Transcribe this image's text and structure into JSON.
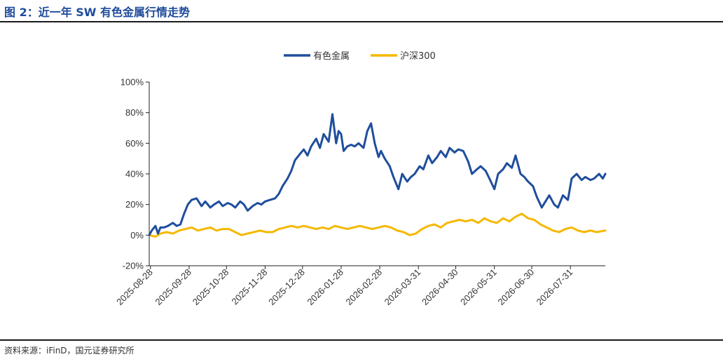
{
  "figure": {
    "title": "图 2：近一年 SW 有色金属行情走势",
    "source": "资料来源：iFinD，国元证券研究所"
  },
  "chart_data": {
    "type": "line",
    "title": "",
    "xlabel": "",
    "ylabel": "",
    "ylim": [
      -20,
      100
    ],
    "yticks": [
      "100%",
      "80%",
      "60%",
      "40%",
      "20%",
      "0%",
      "-20%"
    ],
    "yvalues": [
      100,
      80,
      60,
      40,
      20,
      0,
      -20
    ],
    "xrange": [
      "2025-08-27",
      "2026-08-28"
    ],
    "xticks": [
      "2025-08-28",
      "2025-09-28",
      "2025-10-28",
      "2025-11-28",
      "2025-12-28",
      "2026-01-28",
      "2026-02-28",
      "2026-03-31",
      "2026-04-30",
      "2026-05-31",
      "2026-06-30",
      "2026-07-31"
    ],
    "grid": false,
    "legend_position": "top-center",
    "series": [
      {
        "name": "有色金属",
        "color": "#1f4e9c",
        "x": [
          "2025-08-27",
          "2025-08-29",
          "2025-09-01",
          "2025-09-03",
          "2025-09-05",
          "2025-09-08",
          "2025-09-11",
          "2025-09-15",
          "2025-09-18",
          "2025-09-21",
          "2025-09-24",
          "2025-09-27",
          "2025-09-30",
          "2025-10-04",
          "2025-10-08",
          "2025-10-11",
          "2025-10-15",
          "2025-10-18",
          "2025-10-22",
          "2025-10-25",
          "2025-10-29",
          "2025-11-01",
          "2025-11-04",
          "2025-11-08",
          "2025-11-11",
          "2025-11-14",
          "2025-11-18",
          "2025-11-22",
          "2025-11-25",
          "2025-11-28",
          "2025-12-02",
          "2025-12-06",
          "2025-12-09",
          "2025-12-12",
          "2025-12-16",
          "2025-12-19",
          "2025-12-22",
          "2025-12-26",
          "2025-12-29",
          "2026-01-01",
          "2026-01-04",
          "2026-01-08",
          "2026-01-11",
          "2026-01-14",
          "2026-01-18",
          "2026-01-21",
          "2026-01-24",
          "2026-01-26",
          "2026-01-28",
          "2026-01-30",
          "2026-02-02",
          "2026-02-05",
          "2026-02-08",
          "2026-02-11",
          "2026-02-15",
          "2026-02-18",
          "2026-02-21",
          "2026-02-24",
          "2026-02-27",
          "2026-03-01",
          "2026-03-04",
          "2026-03-08",
          "2026-03-11",
          "2026-03-15",
          "2026-03-18",
          "2026-03-22",
          "2026-03-25",
          "2026-03-28",
          "2026-04-01",
          "2026-04-04",
          "2026-04-08",
          "2026-04-11",
          "2026-04-15",
          "2026-04-18",
          "2026-04-22",
          "2026-04-25",
          "2026-04-29",
          "2026-05-02",
          "2026-05-06",
          "2026-05-10",
          "2026-05-13",
          "2026-05-17",
          "2026-05-20",
          "2026-05-24",
          "2026-05-27",
          "2026-05-31",
          "2026-06-03",
          "2026-06-07",
          "2026-06-10",
          "2026-06-14",
          "2026-06-17",
          "2026-06-21",
          "2026-06-24",
          "2026-06-27",
          "2026-07-01",
          "2026-07-04",
          "2026-07-08",
          "2026-07-11",
          "2026-07-14",
          "2026-07-18",
          "2026-07-21",
          "2026-07-25",
          "2026-07-29",
          "2026-08-01",
          "2026-08-05",
          "2026-08-09",
          "2026-08-12",
          "2026-08-16",
          "2026-08-19",
          "2026-08-23",
          "2026-08-26",
          "2026-08-28"
        ],
        "values": [
          0,
          3,
          6,
          1,
          5,
          5,
          6,
          8,
          6,
          7,
          14,
          20,
          23,
          24,
          19,
          22,
          18,
          20,
          22,
          19,
          21,
          20,
          18,
          22,
          20,
          16,
          19,
          21,
          20,
          22,
          23,
          24,
          27,
          32,
          37,
          42,
          49,
          53,
          56,
          52,
          58,
          63,
          57,
          66,
          61,
          79,
          60,
          68,
          66,
          55,
          58,
          59,
          58,
          60,
          57,
          68,
          73,
          60,
          51,
          55,
          50,
          45,
          38,
          30,
          40,
          35,
          38,
          40,
          45,
          43,
          52,
          47,
          51,
          55,
          51,
          57,
          54,
          56,
          55,
          48,
          40,
          43,
          45,
          42,
          37,
          30,
          40,
          43,
          47,
          44,
          52,
          40,
          38,
          35,
          32,
          25,
          18,
          22,
          26,
          20,
          18,
          26,
          23,
          37,
          40,
          36,
          38,
          36,
          37,
          40,
          37,
          40
        ]
      },
      {
        "name": "沪深300",
        "color": "#f5b800",
        "x": [
          "2025-08-27",
          "2025-09-01",
          "2025-09-05",
          "2025-09-10",
          "2025-09-15",
          "2025-09-20",
          "2025-09-25",
          "2025-09-30",
          "2025-10-05",
          "2025-10-10",
          "2025-10-15",
          "2025-10-20",
          "2025-10-25",
          "2025-10-30",
          "2025-11-04",
          "2025-11-09",
          "2025-11-14",
          "2025-11-19",
          "2025-11-24",
          "2025-11-29",
          "2025-12-04",
          "2025-12-09",
          "2025-12-14",
          "2025-12-19",
          "2025-12-24",
          "2025-12-29",
          "2026-01-03",
          "2026-01-08",
          "2026-01-13",
          "2026-01-18",
          "2026-01-23",
          "2026-01-28",
          "2026-02-02",
          "2026-02-07",
          "2026-02-12",
          "2026-02-17",
          "2026-02-22",
          "2026-02-27",
          "2026-03-04",
          "2026-03-09",
          "2026-03-14",
          "2026-03-19",
          "2026-03-24",
          "2026-03-29",
          "2026-04-03",
          "2026-04-08",
          "2026-04-13",
          "2026-04-18",
          "2026-04-23",
          "2026-04-28",
          "2026-05-03",
          "2026-05-08",
          "2026-05-13",
          "2026-05-18",
          "2026-05-23",
          "2026-05-28",
          "2026-06-02",
          "2026-06-07",
          "2026-06-12",
          "2026-06-17",
          "2026-06-22",
          "2026-06-27",
          "2026-07-02",
          "2026-07-07",
          "2026-07-12",
          "2026-07-17",
          "2026-07-22",
          "2026-07-27",
          "2026-08-01",
          "2026-08-06",
          "2026-08-11",
          "2026-08-16",
          "2026-08-21",
          "2026-08-28"
        ],
        "values": [
          0,
          -1,
          1,
          2,
          1,
          3,
          4,
          5,
          3,
          4,
          5,
          3,
          4,
          4,
          2,
          0,
          1,
          2,
          3,
          2,
          2,
          4,
          5,
          6,
          5,
          6,
          5,
          4,
          5,
          4,
          6,
          5,
          4,
          5,
          6,
          5,
          4,
          5,
          6,
          5,
          3,
          2,
          0,
          1,
          4,
          6,
          7,
          5,
          8,
          9,
          10,
          9,
          10,
          8,
          11,
          9,
          8,
          11,
          9,
          12,
          14,
          11,
          10,
          7,
          5,
          3,
          2,
          4,
          5,
          3,
          2,
          3,
          2,
          3
        ]
      }
    ]
  }
}
